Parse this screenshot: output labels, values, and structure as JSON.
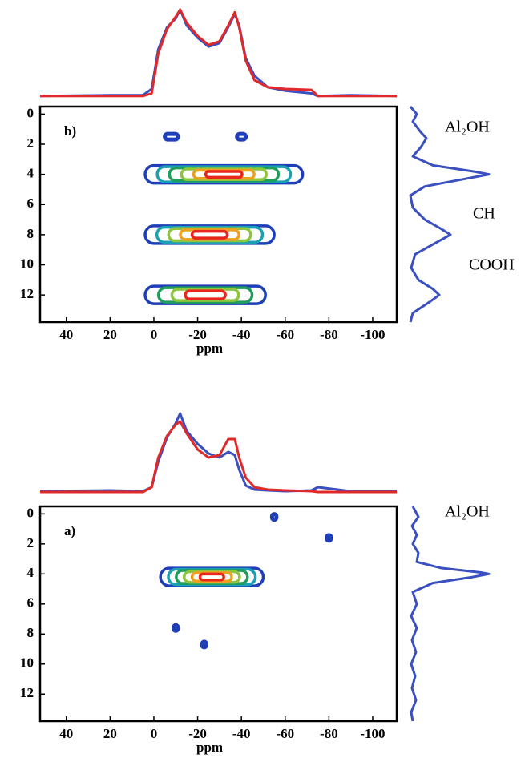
{
  "chart_data": [
    {
      "type": "contour",
      "label": "b)",
      "xlabel": "ppm",
      "xlim": [
        52,
        -111
      ],
      "xticks": [
        40,
        20,
        0,
        -20,
        -40,
        -60,
        -80,
        -100
      ],
      "ylim": [
        -0.5,
        13.8
      ],
      "yticks": [
        0,
        2,
        4,
        6,
        8,
        10,
        12
      ],
      "annotations": [
        "Al₂OH",
        "CH",
        "COOH"
      ],
      "spectrum_x": [
        52,
        20,
        5,
        1,
        -2,
        -6,
        -10,
        -12,
        -15,
        -20,
        -25,
        -30,
        -34,
        -37,
        -39,
        -42,
        -46,
        -52,
        -60,
        -72,
        -75,
        -90,
        -111
      ],
      "spectrum": [
        {
          "color": "#3a4fc0",
          "values": [
            0.02,
            0.03,
            0.03,
            0.1,
            0.55,
            0.8,
            0.9,
            1.0,
            0.82,
            0.68,
            0.58,
            0.62,
            0.8,
            0.95,
            0.82,
            0.45,
            0.25,
            0.12,
            0.08,
            0.05,
            0.02,
            0.03,
            0.02
          ]
        },
        {
          "color": "#e02a2a",
          "values": [
            0.02,
            0.02,
            0.02,
            0.05,
            0.5,
            0.78,
            0.92,
            1.0,
            0.85,
            0.7,
            0.6,
            0.64,
            0.82,
            0.97,
            0.8,
            0.42,
            0.2,
            0.12,
            0.1,
            0.09,
            0.02,
            0.02,
            0.02
          ]
        }
      ],
      "projection_y": [
        -0.5,
        0,
        0.5,
        1.2,
        1.6,
        2.2,
        2.8,
        3.4,
        3.8,
        4,
        4.3,
        4.8,
        5.4,
        6.2,
        7,
        7.6,
        8,
        8.5,
        9.3,
        10.2,
        11,
        11.6,
        12,
        12.5,
        13.2,
        13.8
      ],
      "projection": {
        "color": "#3a4fc0",
        "values": [
          0.02,
          0.1,
          0.05,
          0.15,
          0.22,
          0.15,
          0.05,
          0.3,
          0.8,
          1.0,
          0.7,
          0.2,
          0.02,
          0.05,
          0.2,
          0.4,
          0.52,
          0.35,
          0.08,
          0.03,
          0.12,
          0.3,
          0.38,
          0.25,
          0.05,
          0.02
        ]
      },
      "contours": [
        {
          "xlim": [
            -5,
            -11
          ],
          "y": 1.5,
          "levels": 1
        },
        {
          "xlim": [
            -38,
            -42
          ],
          "y": 1.5,
          "levels": 1
        },
        {
          "xlim": [
            4,
            -68
          ],
          "y": 4,
          "levels": 6
        },
        {
          "xlim": [
            4,
            -55
          ],
          "y": 8,
          "levels": 5
        },
        {
          "xlim": [
            4,
            -51
          ],
          "y": 12,
          "levels": 4
        }
      ]
    },
    {
      "type": "contour",
      "label": "a)",
      "xlabel": "ppm",
      "xlim": [
        52,
        -111
      ],
      "xticks": [
        40,
        20,
        0,
        -20,
        -40,
        -60,
        -80,
        -100
      ],
      "ylim": [
        -0.5,
        13.8
      ],
      "yticks": [
        0,
        2,
        4,
        6,
        8,
        10,
        12
      ],
      "annotations": [
        "Al₂OH"
      ],
      "spectrum_x": [
        52,
        20,
        5,
        1,
        -2,
        -6,
        -10,
        -12,
        -15,
        -20,
        -25,
        -30,
        -34,
        -37,
        -39,
        -42,
        -46,
        -52,
        -60,
        -72,
        -75,
        -90,
        -111
      ],
      "spectrum": [
        {
          "color": "#3a4fc0",
          "values": [
            0.03,
            0.04,
            0.03,
            0.08,
            0.4,
            0.7,
            0.88,
            1.0,
            0.78,
            0.62,
            0.5,
            0.45,
            0.52,
            0.48,
            0.3,
            0.1,
            0.05,
            0.04,
            0.03,
            0.04,
            0.08,
            0.03,
            0.03
          ]
        },
        {
          "color": "#e02a2a",
          "values": [
            0.02,
            0.02,
            0.02,
            0.08,
            0.45,
            0.72,
            0.86,
            0.9,
            0.75,
            0.55,
            0.45,
            0.48,
            0.68,
            0.68,
            0.45,
            0.2,
            0.08,
            0.05,
            0.04,
            0.03,
            0.02,
            0.02,
            0.02
          ]
        }
      ],
      "projection_y": [
        -0.5,
        0.2,
        0.8,
        1.4,
        2,
        2.6,
        3.2,
        3.6,
        3.9,
        4,
        4.2,
        4.6,
        5.2,
        6,
        6.8,
        7.6,
        8.4,
        9.2,
        10,
        10.8,
        11.6,
        12.4,
        13.2,
        13.8
      ],
      "projection": {
        "color": "#3a4fc0",
        "values": [
          0.05,
          0.12,
          0.04,
          0.1,
          0.05,
          0.12,
          0.1,
          0.4,
          0.9,
          1.0,
          0.8,
          0.3,
          0.05,
          0.1,
          0.03,
          0.1,
          0.04,
          0.09,
          0.03,
          0.08,
          0.04,
          0.09,
          0.03,
          0.05
        ]
      },
      "contours": [
        {
          "xlim": [
            -3,
            -50
          ],
          "y": 4.2,
          "levels": 6
        },
        {
          "xlim": [
            -54,
            -56
          ],
          "y": 0.2,
          "levels": 1
        },
        {
          "xlim": [
            -79,
            -81
          ],
          "y": 1.6,
          "levels": 1
        },
        {
          "xlim": [
            -9,
            -11
          ],
          "y": 7.6,
          "levels": 1
        },
        {
          "xlim": [
            -22,
            -24
          ],
          "y": 8.7,
          "levels": 1
        }
      ]
    }
  ]
}
